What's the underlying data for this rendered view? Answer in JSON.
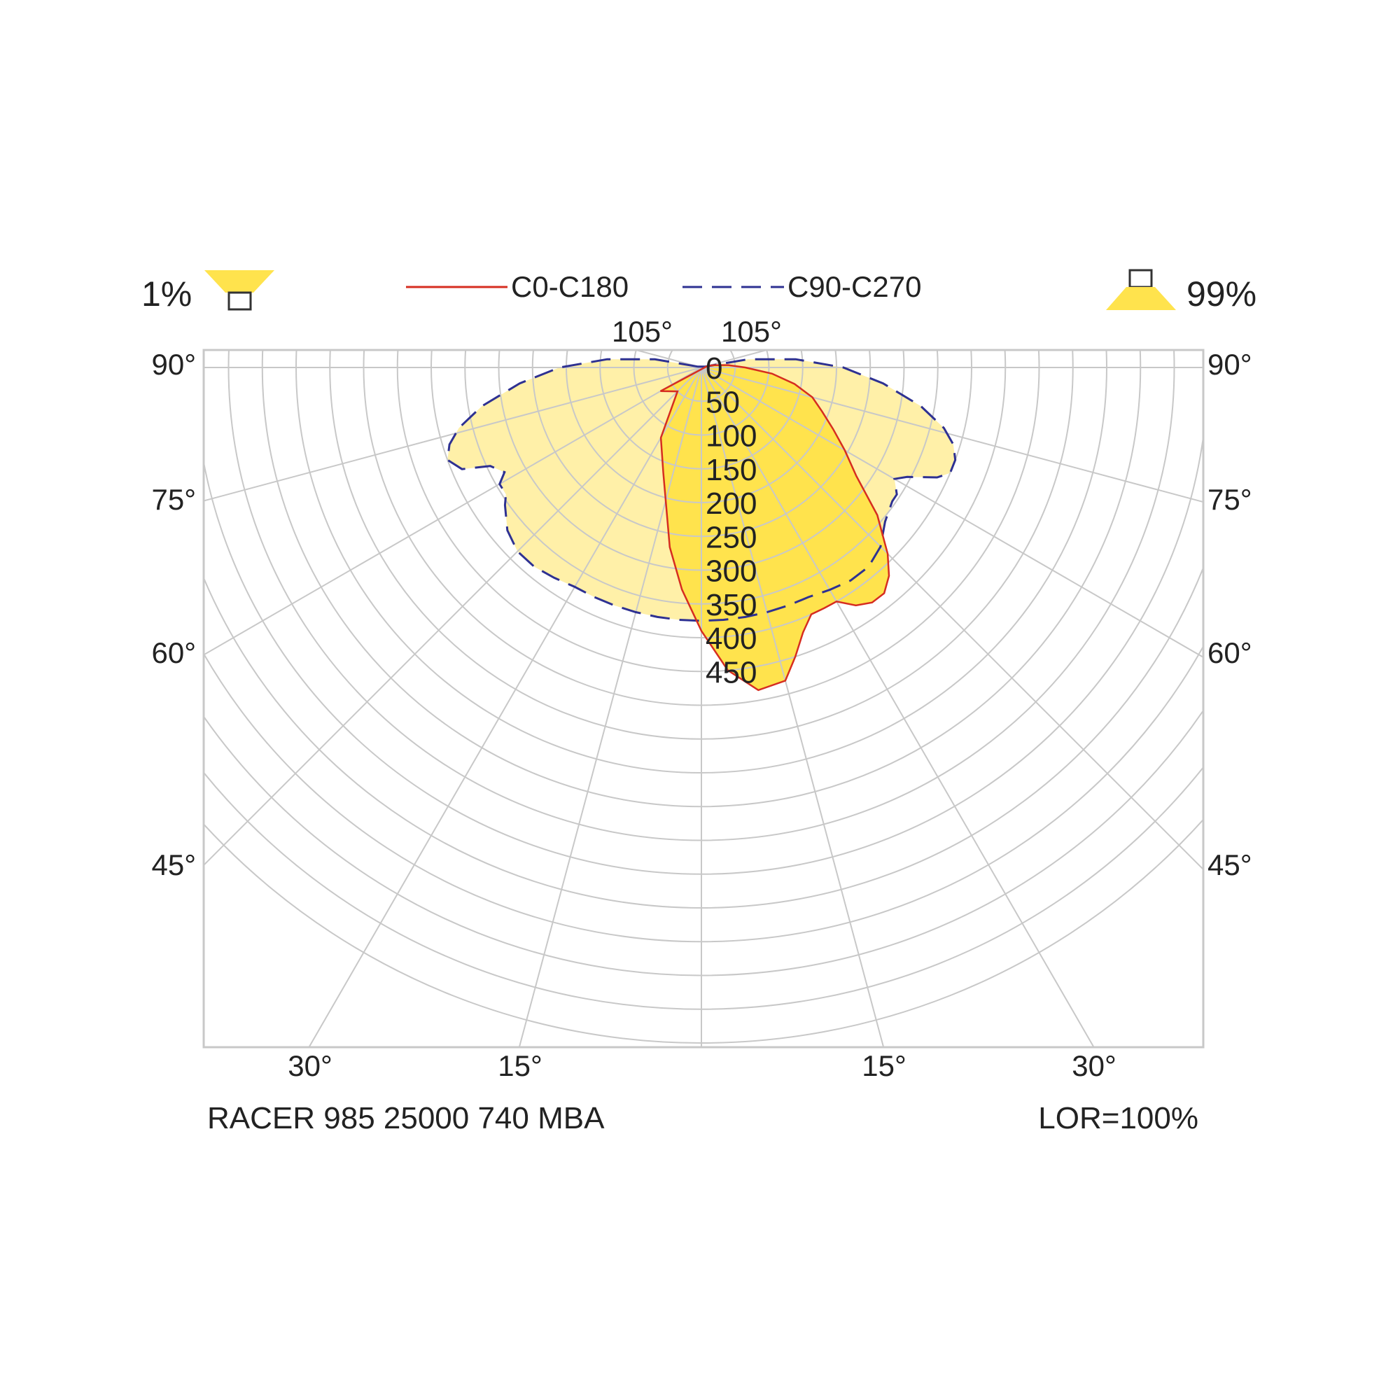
{
  "chart_data": {
    "type": "polar",
    "title": "",
    "product_name": "RACER 985 25000 740 MBA",
    "lor_text": "LOR=100%",
    "upward_percent": "1%",
    "downward_percent": "99%",
    "radial_scale": {
      "max": 500,
      "ticks": [
        "0",
        "50",
        "100",
        "150",
        "200",
        "250",
        "300",
        "350",
        "400",
        "450"
      ]
    },
    "angle_labels": {
      "top": [
        "105°",
        "105°"
      ],
      "left": [
        "90°",
        "75°",
        "60°",
        "45°"
      ],
      "right": [
        "90°",
        "75°",
        "60°",
        "45°"
      ],
      "bottom": [
        "30°",
        "15°",
        "15°",
        "30°"
      ]
    },
    "grid": true,
    "legend_position": "top-center",
    "series": [
      {
        "name": "C90-C270",
        "line_style": "dashed",
        "line_color": "#2e3192",
        "fill_color": "#fff0a8",
        "angles_deg": [
          -105,
          -100,
          -95,
          -90,
          -85,
          -80,
          -76,
          -73,
          -70,
          -67,
          -65,
          -62,
          -60,
          -57,
          -55,
          -50,
          -45,
          -40,
          -35,
          -30,
          -25,
          -20,
          -15,
          -10,
          -5,
          0,
          5,
          10,
          15,
          20,
          25,
          30,
          35,
          40,
          45,
          50,
          55,
          57,
          60,
          62,
          65,
          67,
          70,
          73,
          76,
          80,
          85,
          90,
          95,
          100,
          105
        ],
        "values": [
          5,
          70,
          140,
          210,
          270,
          330,
          370,
          390,
          400,
          385,
          345,
          330,
          345,
          345,
          355,
          375,
          385,
          385,
          380,
          375,
          375,
          375,
          375,
          375,
          375,
          375,
          375,
          375,
          375,
          375,
          375,
          380,
          385,
          385,
          375,
          355,
          345,
          345,
          330,
          345,
          385,
          400,
          400,
          390,
          370,
          330,
          270,
          210,
          140,
          70,
          5
        ]
      },
      {
        "name": "C0-C180",
        "line_style": "solid",
        "line_color": "#d62d20",
        "fill_color": "#ffe34d",
        "angles_deg": [
          -60,
          -45,
          -30,
          -20,
          -10,
          -5,
          0,
          5,
          10,
          15,
          18,
          21,
          24,
          27,
          30,
          33,
          36,
          39,
          42,
          45,
          50,
          55,
          60,
          65,
          70,
          75,
          80,
          85,
          90,
          95,
          100,
          105
        ],
        "values": [
          70,
          50,
          120,
          165,
          270,
          330,
          390,
          450,
          485,
          480,
          450,
          420,
          400,
          400,
          400,
          420,
          430,
          430,
          415,
          390,
          340,
          280,
          245,
          215,
          190,
          170,
          140,
          105,
          65,
          40,
          20,
          10
        ]
      }
    ]
  }
}
